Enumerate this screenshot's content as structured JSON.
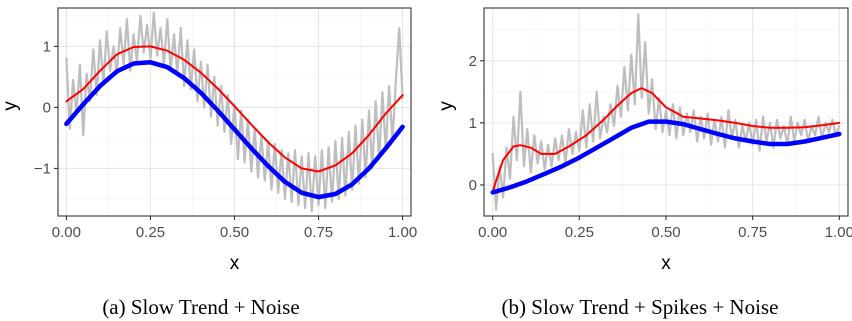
{
  "colors": {
    "raw": "#bebebe",
    "fit": "#ff0000",
    "trend": "#0000ff",
    "grid": "#e6e6e6",
    "border": "#333333"
  },
  "chart_data": [
    {
      "type": "line",
      "caption": "(a) Slow Trend + Noise",
      "xlabel": "x",
      "ylabel": "y",
      "xlim": [
        -0.025,
        1.025
      ],
      "ylim": [
        -1.78,
        1.63
      ],
      "x_ticks": [
        0,
        0.25,
        0.5,
        0.75,
        1
      ],
      "x_tick_labels": [
        "0.00",
        "0.25",
        "0.50",
        "0.75",
        "1.00"
      ],
      "y_ticks": [
        -1,
        0,
        1
      ],
      "y_tick_labels": [
        "−1",
        "0",
        "1"
      ],
      "grid": true,
      "series": [
        {
          "key": "noisy",
          "x": [
            0,
            0.01,
            0.02,
            0.03,
            0.04,
            0.05,
            0.06,
            0.07,
            0.08,
            0.09,
            0.1,
            0.11,
            0.12,
            0.13,
            0.14,
            0.15,
            0.16,
            0.17,
            0.18,
            0.19,
            0.2,
            0.21,
            0.22,
            0.23,
            0.24,
            0.25,
            0.26,
            0.27,
            0.28,
            0.29,
            0.3,
            0.31,
            0.32,
            0.33,
            0.34,
            0.35,
            0.36,
            0.37,
            0.38,
            0.39,
            0.4,
            0.41,
            0.42,
            0.43,
            0.44,
            0.45,
            0.46,
            0.47,
            0.48,
            0.49,
            0.5,
            0.51,
            0.52,
            0.53,
            0.54,
            0.55,
            0.56,
            0.57,
            0.58,
            0.59,
            0.6,
            0.61,
            0.62,
            0.63,
            0.64,
            0.65,
            0.66,
            0.67,
            0.68,
            0.69,
            0.7,
            0.71,
            0.72,
            0.73,
            0.74,
            0.75,
            0.76,
            0.77,
            0.78,
            0.79,
            0.8,
            0.81,
            0.82,
            0.83,
            0.84,
            0.85,
            0.86,
            0.87,
            0.88,
            0.89,
            0.9,
            0.91,
            0.92,
            0.93,
            0.94,
            0.95,
            0.96,
            0.97,
            0.98,
            0.99,
            1.0
          ],
          "y": [
            0.8,
            -0.35,
            0.45,
            -0.1,
            0.7,
            -0.45,
            0.55,
            0.1,
            0.95,
            0.2,
            1.1,
            0.4,
            1.25,
            0.6,
            1.0,
            0.55,
            1.3,
            0.7,
            1.45,
            0.6,
            1.2,
            0.75,
            1.5,
            0.9,
            1.35,
            0.8,
            1.55,
            0.85,
            1.3,
            0.7,
            1.45,
            0.6,
            1.2,
            0.55,
            1.3,
            0.35,
            1.1,
            0.3,
            0.95,
            0.1,
            0.75,
            0.0,
            0.7,
            -0.15,
            0.5,
            -0.3,
            0.35,
            -0.4,
            0.2,
            -0.6,
            0.05,
            -0.85,
            -0.05,
            -0.9,
            -0.2,
            -1.05,
            -0.35,
            -1.15,
            -0.45,
            -1.2,
            -0.55,
            -1.35,
            -0.6,
            -1.4,
            -0.7,
            -1.5,
            -0.75,
            -1.55,
            -0.7,
            -1.6,
            -0.8,
            -1.65,
            -0.75,
            -1.7,
            -0.8,
            -1.6,
            -0.7,
            -1.65,
            -0.65,
            -1.55,
            -0.55,
            -1.5,
            -0.5,
            -1.45,
            -0.4,
            -1.35,
            -0.3,
            -1.25,
            -0.2,
            -1.15,
            -0.05,
            -1.0,
            0.1,
            -0.85,
            0.25,
            -0.7,
            0.35,
            -0.55,
            0.45,
            1.3,
            0.15
          ]
        },
        {
          "key": "fit",
          "x": [
            0,
            0.05,
            0.1,
            0.15,
            0.2,
            0.25,
            0.3,
            0.35,
            0.4,
            0.45,
            0.5,
            0.55,
            0.6,
            0.65,
            0.7,
            0.75,
            0.8,
            0.85,
            0.9,
            0.95,
            1.0
          ],
          "y": [
            0.1,
            0.3,
            0.6,
            0.87,
            0.99,
            1.0,
            0.93,
            0.78,
            0.57,
            0.31,
            0.02,
            -0.28,
            -0.57,
            -0.82,
            -1.0,
            -1.05,
            -0.95,
            -0.75,
            -0.45,
            -0.1,
            0.2
          ]
        },
        {
          "key": "trend",
          "x": [
            0,
            0.05,
            0.1,
            0.15,
            0.2,
            0.25,
            0.3,
            0.35,
            0.4,
            0.45,
            0.5,
            0.55,
            0.6,
            0.65,
            0.7,
            0.75,
            0.8,
            0.85,
            0.9,
            0.95,
            1.0
          ],
          "y": [
            -0.27,
            0.05,
            0.35,
            0.59,
            0.72,
            0.74,
            0.66,
            0.48,
            0.24,
            -0.05,
            -0.36,
            -0.67,
            -0.96,
            -1.22,
            -1.4,
            -1.47,
            -1.42,
            -1.26,
            -1.0,
            -0.67,
            -0.32
          ]
        }
      ]
    },
    {
      "type": "line",
      "caption": "(b) Slow Trend + Spikes + Noise",
      "xlabel": "x",
      "ylabel": "y",
      "xlim": [
        -0.025,
        1.025
      ],
      "ylim": [
        -0.5,
        2.85
      ],
      "x_ticks": [
        0,
        0.25,
        0.5,
        0.75,
        1
      ],
      "x_tick_labels": [
        "0.00",
        "0.25",
        "0.50",
        "0.75",
        "1.00"
      ],
      "y_ticks": [
        0,
        1,
        2
      ],
      "y_tick_labels": [
        "0",
        "1",
        "2"
      ],
      "grid": true,
      "series": [
        {
          "key": "noisy",
          "x": [
            0,
            0.01,
            0.02,
            0.03,
            0.04,
            0.05,
            0.06,
            0.07,
            0.08,
            0.09,
            0.1,
            0.11,
            0.12,
            0.13,
            0.14,
            0.15,
            0.16,
            0.17,
            0.18,
            0.19,
            0.2,
            0.21,
            0.22,
            0.23,
            0.24,
            0.25,
            0.26,
            0.27,
            0.28,
            0.29,
            0.3,
            0.31,
            0.32,
            0.33,
            0.34,
            0.35,
            0.36,
            0.37,
            0.38,
            0.39,
            0.4,
            0.41,
            0.42,
            0.43,
            0.44,
            0.45,
            0.46,
            0.47,
            0.48,
            0.49,
            0.5,
            0.51,
            0.52,
            0.53,
            0.54,
            0.55,
            0.56,
            0.57,
            0.58,
            0.59,
            0.6,
            0.61,
            0.62,
            0.63,
            0.64,
            0.65,
            0.66,
            0.67,
            0.68,
            0.69,
            0.7,
            0.71,
            0.72,
            0.73,
            0.74,
            0.75,
            0.76,
            0.77,
            0.78,
            0.79,
            0.8,
            0.81,
            0.82,
            0.83,
            0.84,
            0.85,
            0.86,
            0.87,
            0.88,
            0.89,
            0.9,
            0.91,
            0.92,
            0.93,
            0.94,
            0.95,
            0.96,
            0.97,
            0.98,
            0.99,
            1.0
          ],
          "y": [
            0.5,
            -0.4,
            0.3,
            -0.2,
            0.6,
            0.1,
            1.1,
            0.4,
            1.5,
            0.3,
            0.9,
            0.2,
            0.8,
            0.35,
            0.7,
            0.25,
            0.65,
            0.3,
            0.75,
            0.4,
            0.8,
            0.35,
            0.9,
            0.5,
            0.85,
            0.55,
            1.2,
            0.6,
            1.3,
            0.7,
            1.5,
            0.75,
            1.1,
            0.85,
            1.3,
            0.95,
            1.6,
            1.1,
            1.9,
            1.2,
            2.1,
            1.3,
            2.75,
            1.4,
            2.3,
            1.15,
            1.7,
            0.9,
            1.4,
            0.85,
            1.2,
            0.8,
            1.3,
            0.75,
            1.25,
            0.8,
            1.15,
            0.85,
            1.2,
            0.7,
            1.1,
            0.75,
            1.15,
            0.65,
            1.05,
            0.7,
            1.1,
            0.6,
            1.2,
            0.75,
            1.05,
            0.6,
            0.95,
            0.7,
            1.0,
            0.65,
            1.05,
            0.55,
            1.1,
            0.7,
            1.0,
            0.6,
            1.05,
            0.75,
            0.95,
            0.65,
            1.1,
            0.7,
            1.0,
            0.8,
            1.05,
            0.7,
            0.95,
            0.8,
            1.1,
            0.75,
            1.0,
            0.85,
            1.05,
            0.8,
            0.95
          ]
        },
        {
          "key": "fit",
          "x": [
            0,
            0.03,
            0.06,
            0.08,
            0.11,
            0.14,
            0.18,
            0.22,
            0.27,
            0.32,
            0.36,
            0.4,
            0.43,
            0.46,
            0.5,
            0.55,
            0.6,
            0.65,
            0.7,
            0.75,
            0.8,
            0.85,
            0.9,
            0.95,
            1.0
          ],
          "y": [
            -0.1,
            0.4,
            0.62,
            0.64,
            0.6,
            0.5,
            0.5,
            0.62,
            0.8,
            1.05,
            1.28,
            1.48,
            1.56,
            1.48,
            1.25,
            1.1,
            1.07,
            1.04,
            1.0,
            0.95,
            0.92,
            0.92,
            0.93,
            0.96,
            1.0
          ]
        },
        {
          "key": "trend",
          "x": [
            0,
            0.05,
            0.1,
            0.15,
            0.2,
            0.25,
            0.3,
            0.35,
            0.4,
            0.45,
            0.5,
            0.55,
            0.6,
            0.65,
            0.7,
            0.75,
            0.8,
            0.85,
            0.9,
            0.95,
            1.0
          ],
          "y": [
            -0.12,
            -0.04,
            0.06,
            0.18,
            0.3,
            0.44,
            0.6,
            0.76,
            0.92,
            1.02,
            1.02,
            0.98,
            0.9,
            0.82,
            0.75,
            0.7,
            0.66,
            0.66,
            0.7,
            0.76,
            0.82
          ]
        }
      ]
    }
  ]
}
